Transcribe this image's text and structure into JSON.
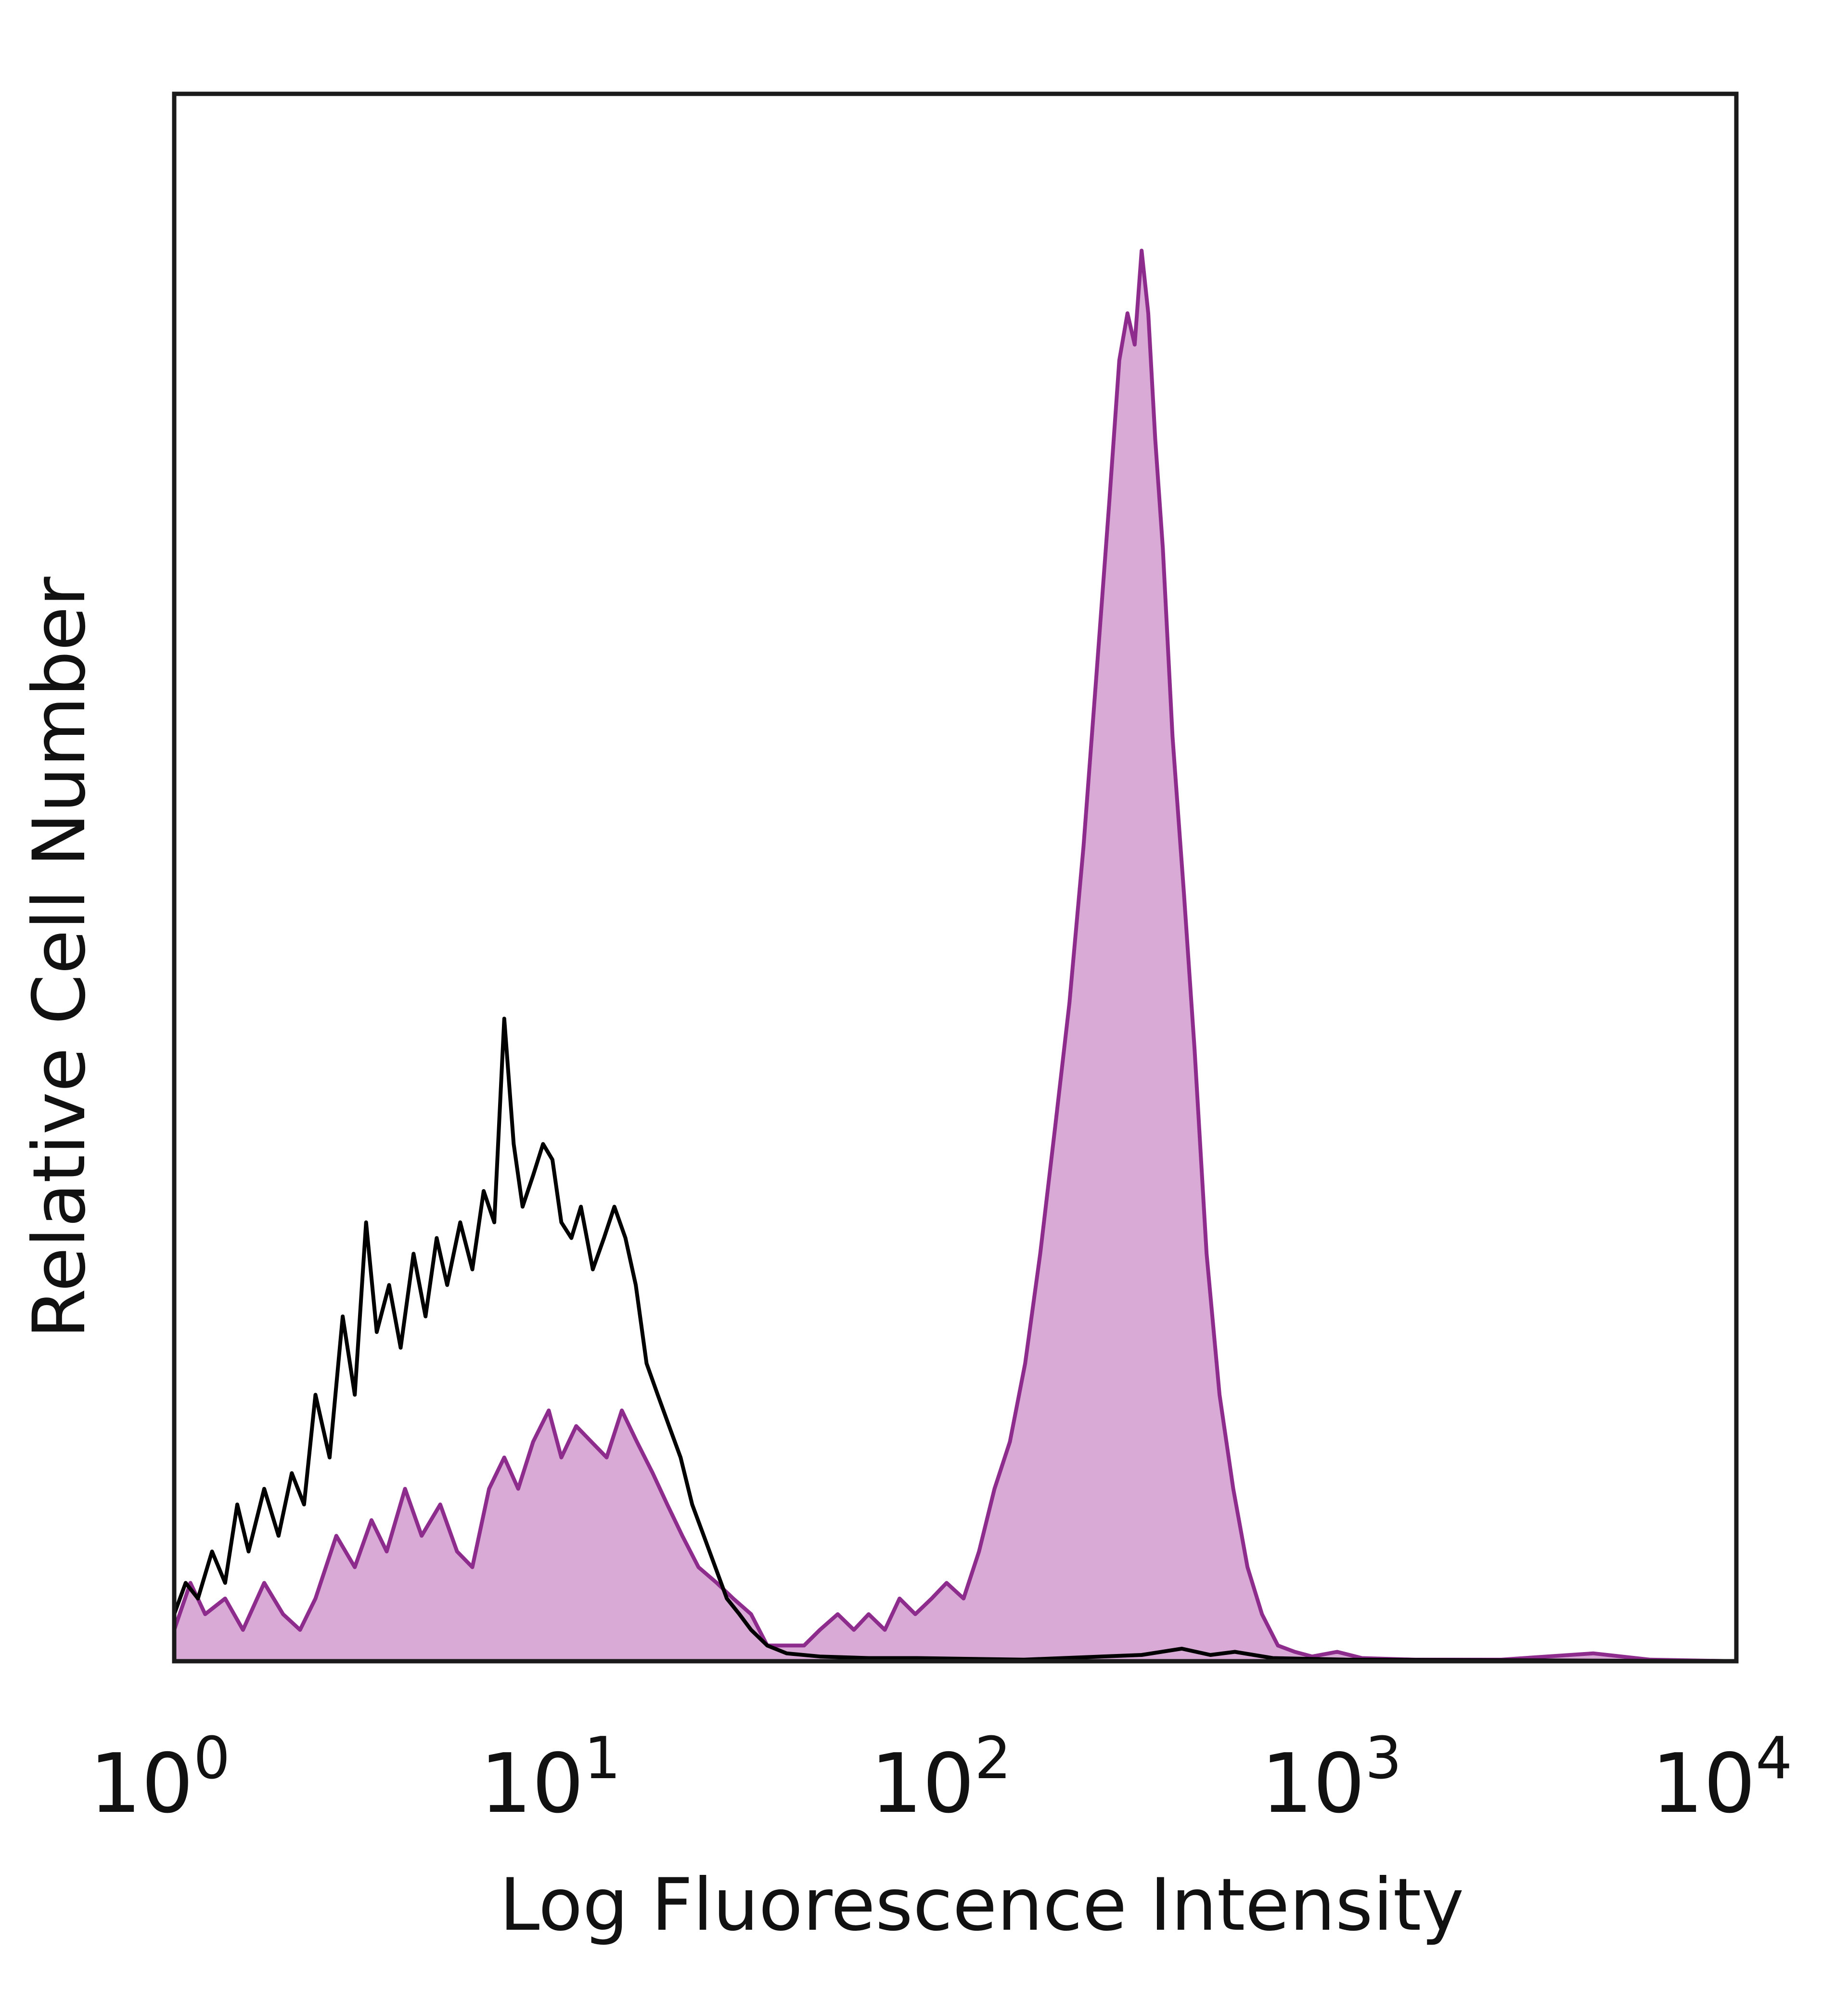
{
  "chart_data": {
    "type": "area",
    "title": "",
    "xlabel": "Log Fluorescence Intensity",
    "ylabel": "Relative Cell Number",
    "x_scale": "log",
    "xlim": [
      1,
      10000
    ],
    "ylim": [
      0,
      100
    ],
    "grid": false,
    "legend": "none",
    "x_ticks": [
      {
        "value": 1,
        "base": "10",
        "exp": "0"
      },
      {
        "value": 10,
        "base": "10",
        "exp": "1"
      },
      {
        "value": 100,
        "base": "10",
        "exp": "2"
      },
      {
        "value": 1000,
        "base": "10",
        "exp": "3"
      },
      {
        "value": 10000,
        "base": "10",
        "exp": "4"
      }
    ],
    "series": [
      {
        "style": "filled",
        "color": "#8e2c8e",
        "fill": "#d9aad5",
        "points": [
          [
            1.0,
            2
          ],
          [
            1.1,
            5
          ],
          [
            1.2,
            3
          ],
          [
            1.35,
            4
          ],
          [
            1.5,
            2
          ],
          [
            1.7,
            5
          ],
          [
            1.9,
            3
          ],
          [
            2.1,
            2
          ],
          [
            2.3,
            4
          ],
          [
            2.6,
            8
          ],
          [
            2.9,
            6
          ],
          [
            3.2,
            9
          ],
          [
            3.5,
            7
          ],
          [
            3.9,
            11
          ],
          [
            4.3,
            8
          ],
          [
            4.8,
            10
          ],
          [
            5.3,
            7
          ],
          [
            5.8,
            6
          ],
          [
            6.4,
            11
          ],
          [
            7.0,
            13
          ],
          [
            7.6,
            11
          ],
          [
            8.3,
            14
          ],
          [
            9.1,
            16
          ],
          [
            9.8,
            13
          ],
          [
            10.7,
            15
          ],
          [
            11.7,
            14
          ],
          [
            12.8,
            13
          ],
          [
            14.0,
            16
          ],
          [
            15.3,
            14
          ],
          [
            16.8,
            12
          ],
          [
            18.3,
            10
          ],
          [
            20.0,
            8
          ],
          [
            22.0,
            6
          ],
          [
            24.5,
            5
          ],
          [
            27.0,
            4
          ],
          [
            30.0,
            3
          ],
          [
            33.0,
            1
          ],
          [
            37.0,
            1
          ],
          [
            41.0,
            1
          ],
          [
            45.0,
            2
          ],
          [
            50.0,
            3
          ],
          [
            55.0,
            2
          ],
          [
            60.0,
            3
          ],
          [
            66.0,
            2
          ],
          [
            72.0,
            4
          ],
          [
            79.0,
            3
          ],
          [
            87.0,
            4
          ],
          [
            95.0,
            5
          ],
          [
            105.0,
            4
          ],
          [
            115.0,
            7
          ],
          [
            126.0,
            11
          ],
          [
            138.0,
            14
          ],
          [
            151.0,
            19
          ],
          [
            165.0,
            26
          ],
          [
            180.0,
            34
          ],
          [
            196.0,
            42
          ],
          [
            213.0,
            52
          ],
          [
            230.0,
            63
          ],
          [
            248.0,
            74
          ],
          [
            263.0,
            83
          ],
          [
            276.0,
            86
          ],
          [
            288.0,
            84
          ],
          [
            300.0,
            90
          ],
          [
            312.0,
            86
          ],
          [
            325.0,
            78
          ],
          [
            340.0,
            71
          ],
          [
            360.0,
            59
          ],
          [
            385.0,
            49
          ],
          [
            410.0,
            39
          ],
          [
            440.0,
            26
          ],
          [
            475.0,
            17
          ],
          [
            515.0,
            11
          ],
          [
            560.0,
            6
          ],
          [
            610.0,
            3
          ],
          [
            670.0,
            1
          ],
          [
            740.0,
            0.6
          ],
          [
            820.0,
            0.3
          ],
          [
            950.0,
            0.6
          ],
          [
            1100.0,
            0.2
          ],
          [
            1500.0,
            0.1
          ],
          [
            2500.0,
            0.1
          ],
          [
            4300.0,
            0.5
          ],
          [
            6000.0,
            0.1
          ],
          [
            10000.0,
            0
          ]
        ]
      },
      {
        "style": "outline",
        "color": "#000000",
        "points": [
          [
            1.0,
            3
          ],
          [
            1.07,
            5
          ],
          [
            1.15,
            4
          ],
          [
            1.25,
            7
          ],
          [
            1.35,
            5
          ],
          [
            1.45,
            10
          ],
          [
            1.55,
            7
          ],
          [
            1.7,
            11
          ],
          [
            1.85,
            8
          ],
          [
            2.0,
            12
          ],
          [
            2.15,
            10
          ],
          [
            2.3,
            17
          ],
          [
            2.5,
            13
          ],
          [
            2.7,
            22
          ],
          [
            2.9,
            17
          ],
          [
            3.1,
            28
          ],
          [
            3.3,
            21
          ],
          [
            3.55,
            24
          ],
          [
            3.8,
            20
          ],
          [
            4.1,
            26
          ],
          [
            4.4,
            22
          ],
          [
            4.7,
            27
          ],
          [
            5.0,
            24
          ],
          [
            5.4,
            28
          ],
          [
            5.8,
            25
          ],
          [
            6.2,
            30
          ],
          [
            6.6,
            28
          ],
          [
            7.0,
            41
          ],
          [
            7.4,
            33
          ],
          [
            7.8,
            29
          ],
          [
            8.3,
            31
          ],
          [
            8.8,
            33
          ],
          [
            9.3,
            32
          ],
          [
            9.8,
            28
          ],
          [
            10.4,
            27
          ],
          [
            11.0,
            29
          ],
          [
            11.8,
            25
          ],
          [
            12.6,
            27
          ],
          [
            13.4,
            29
          ],
          [
            14.3,
            27
          ],
          [
            15.2,
            24
          ],
          [
            16.2,
            19
          ],
          [
            17.3,
            17
          ],
          [
            18.5,
            15
          ],
          [
            19.8,
            13
          ],
          [
            21.2,
            10
          ],
          [
            22.7,
            8
          ],
          [
            24.3,
            6
          ],
          [
            26.0,
            4
          ],
          [
            28.0,
            3
          ],
          [
            30.0,
            2
          ],
          [
            33.0,
            1
          ],
          [
            37.0,
            0.5
          ],
          [
            45.0,
            0.3
          ],
          [
            60.0,
            0.2
          ],
          [
            80.0,
            0.2
          ],
          [
            150.0,
            0.1
          ],
          [
            300.0,
            0.4
          ],
          [
            380.0,
            0.8
          ],
          [
            450.0,
            0.4
          ],
          [
            520.0,
            0.6
          ],
          [
            650.0,
            0.2
          ],
          [
            1000.0,
            0.1
          ],
          [
            10000.0,
            0
          ]
        ]
      }
    ]
  }
}
